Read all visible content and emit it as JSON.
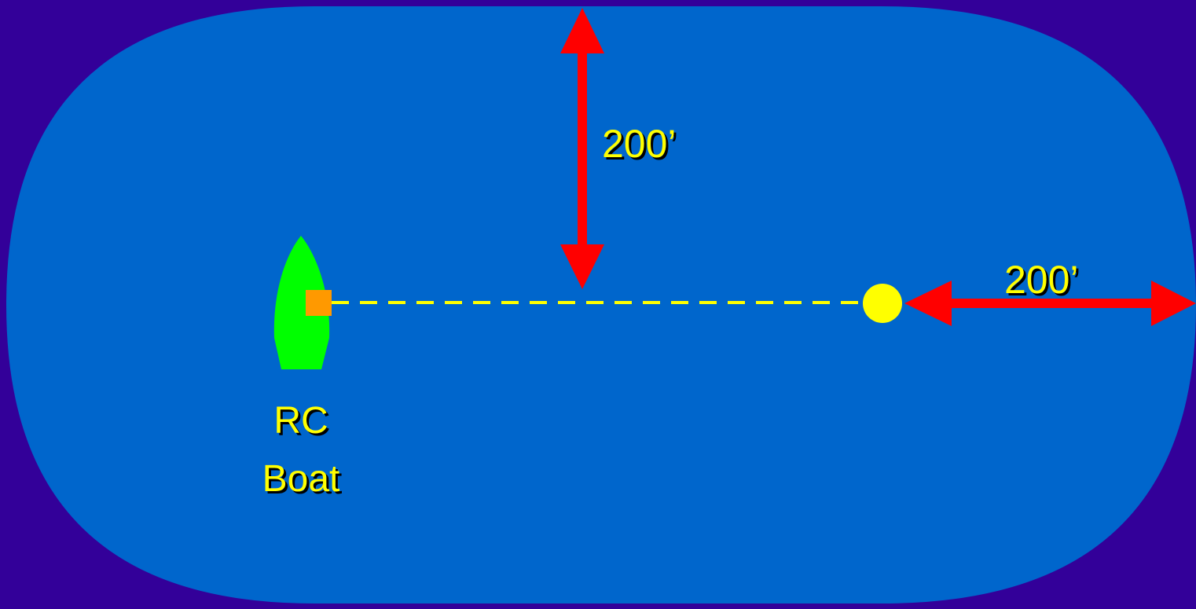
{
  "diagram": {
    "vertical_distance_label": "200’",
    "horizontal_distance_label": "200’",
    "boat_label_line1": "RC",
    "boat_label_line2": "Boat"
  },
  "colors": {
    "background": "#330099",
    "water": "#0066cc",
    "arrow": "#ff0000",
    "boat": "#00ff00",
    "flag": "#ff9900",
    "line": "#ffff00",
    "mark": "#ffff00",
    "label": "#ffff00"
  },
  "icons": {
    "boat": "boat-icon",
    "mark": "buoy-mark-icon",
    "flag": "rc-flag-icon"
  }
}
